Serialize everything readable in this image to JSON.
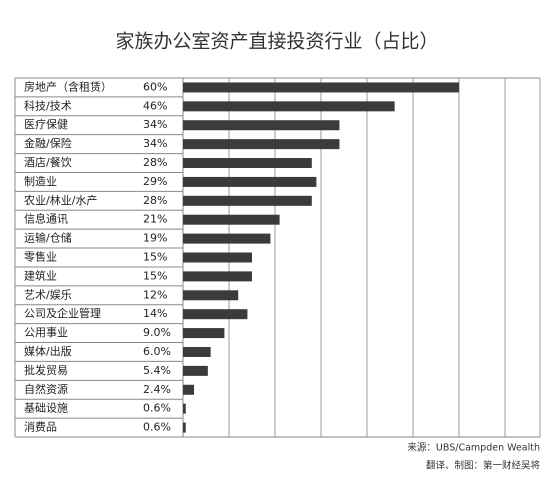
{
  "chart_data": {
    "type": "bar",
    "orientation": "horizontal",
    "title": "家族办公室资产直接投资行业（占比）",
    "categories": [
      "房地产（含租赁）",
      "科技/技术",
      "医疗保健",
      "金融/保险",
      "酒店/餐饮",
      "制造业",
      "农业/林业/水产",
      "信息通讯",
      "运输/仓储",
      "零售业",
      "建筑业",
      "艺术/娱乐",
      "公司及企业管理",
      "公用事业",
      "媒体/出版",
      "批发贸易",
      "自然资源",
      "基础设施",
      "消费品"
    ],
    "values": [
      60,
      46,
      34,
      34,
      28,
      29,
      28,
      21,
      19,
      15,
      15,
      12,
      14,
      9.0,
      6.0,
      5.4,
      2.4,
      0.6,
      0.6
    ],
    "value_labels": [
      "60%",
      "46%",
      "34%",
      "34%",
      "28%",
      "29%",
      "28%",
      "21%",
      "19%",
      "15%",
      "15%",
      "12%",
      "14%",
      "9.0%",
      "6.0%",
      "5.4%",
      "2.4%",
      "0.6%",
      "0.6%"
    ],
    "color": "#3b3b3b",
    "xlim": [
      0,
      77.6
    ],
    "source": "来源：UBS/Campden Wealth",
    "credit": "翻译、制图：第一财经吴将"
  }
}
